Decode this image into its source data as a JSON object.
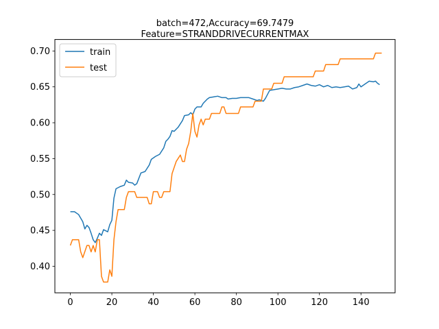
{
  "chart_data": {
    "type": "line",
    "title_line1": "batch=472,Accuracy=69.7479",
    "title_line2": "Feature=STRANDDRIVECURRENTMAX",
    "xlabel": "",
    "ylabel": "",
    "xlim": [
      -7.45,
      156.45
    ],
    "ylim": [
      0.363,
      0.716
    ],
    "xticks": [
      0,
      20,
      40,
      60,
      80,
      100,
      120,
      140
    ],
    "yticks": [
      0.4,
      0.45,
      0.5,
      0.55,
      0.6,
      0.65,
      0.7
    ],
    "ytick_labels": [
      "0.40",
      "0.45",
      "0.50",
      "0.55",
      "0.60",
      "0.65",
      "0.70"
    ],
    "grid": false,
    "legend": "upper-left",
    "series": [
      {
        "name": "train",
        "color": "#1f77b4",
        "points": [
          [
            0,
            0.476
          ],
          [
            2,
            0.476
          ],
          [
            4,
            0.472
          ],
          [
            6,
            0.462
          ],
          [
            7,
            0.452
          ],
          [
            8,
            0.457
          ],
          [
            9,
            0.454
          ],
          [
            10,
            0.446
          ],
          [
            11,
            0.437
          ],
          [
            12,
            0.433
          ],
          [
            13,
            0.439
          ],
          [
            14,
            0.446
          ],
          [
            15,
            0.443
          ],
          [
            16,
            0.451
          ],
          [
            18,
            0.448
          ],
          [
            19,
            0.458
          ],
          [
            20,
            0.464
          ],
          [
            21,
            0.495
          ],
          [
            22,
            0.508
          ],
          [
            24,
            0.511
          ],
          [
            26,
            0.513
          ],
          [
            27,
            0.52
          ],
          [
            28,
            0.517
          ],
          [
            30,
            0.516
          ],
          [
            31,
            0.513
          ],
          [
            32,
            0.515
          ],
          [
            34,
            0.53
          ],
          [
            36,
            0.532
          ],
          [
            38,
            0.541
          ],
          [
            39,
            0.549
          ],
          [
            41,
            0.553
          ],
          [
            43,
            0.556
          ],
          [
            45,
            0.565
          ],
          [
            46,
            0.574
          ],
          [
            47,
            0.577
          ],
          [
            48,
            0.581
          ],
          [
            49,
            0.589
          ],
          [
            50,
            0.588
          ],
          [
            52,
            0.594
          ],
          [
            54,
            0.603
          ],
          [
            55,
            0.61
          ],
          [
            57,
            0.611
          ],
          [
            58,
            0.614
          ],
          [
            59,
            0.611
          ],
          [
            60,
            0.619
          ],
          [
            61,
            0.622
          ],
          [
            63,
            0.622
          ],
          [
            64,
            0.627
          ],
          [
            66,
            0.633
          ],
          [
            67,
            0.635
          ],
          [
            69,
            0.636
          ],
          [
            71,
            0.637
          ],
          [
            73,
            0.635
          ],
          [
            75,
            0.635
          ],
          [
            76,
            0.633
          ],
          [
            78,
            0.634
          ],
          [
            80,
            0.634
          ],
          [
            82,
            0.635
          ],
          [
            84,
            0.635
          ],
          [
            86,
            0.635
          ],
          [
            88,
            0.633
          ],
          [
            90,
            0.631
          ],
          [
            91,
            0.632
          ],
          [
            93,
            0.63
          ],
          [
            94,
            0.634
          ],
          [
            96,
            0.645
          ],
          [
            98,
            0.646
          ],
          [
            100,
            0.647
          ],
          [
            102,
            0.648
          ],
          [
            104,
            0.647
          ],
          [
            106,
            0.647
          ],
          [
            108,
            0.649
          ],
          [
            110,
            0.65
          ],
          [
            112,
            0.652
          ],
          [
            114,
            0.654
          ],
          [
            116,
            0.652
          ],
          [
            118,
            0.651
          ],
          [
            120,
            0.653
          ],
          [
            122,
            0.65
          ],
          [
            124,
            0.652
          ],
          [
            126,
            0.649
          ],
          [
            128,
            0.65
          ],
          [
            130,
            0.649
          ],
          [
            132,
            0.65
          ],
          [
            134,
            0.651
          ],
          [
            136,
            0.647
          ],
          [
            138,
            0.649
          ],
          [
            139,
            0.654
          ],
          [
            140,
            0.65
          ],
          [
            142,
            0.654
          ],
          [
            144,
            0.658
          ],
          [
            146,
            0.657
          ],
          [
            147,
            0.658
          ],
          [
            148,
            0.655
          ],
          [
            149,
            0.653
          ]
        ]
      },
      {
        "name": "test",
        "color": "#ff7f0e",
        "points": [
          [
            0,
            0.429
          ],
          [
            1,
            0.437
          ],
          [
            4,
            0.437
          ],
          [
            5,
            0.42
          ],
          [
            6,
            0.412
          ],
          [
            8,
            0.429
          ],
          [
            9,
            0.429
          ],
          [
            10,
            0.42
          ],
          [
            11,
            0.429
          ],
          [
            12,
            0.42
          ],
          [
            13,
            0.437
          ],
          [
            14,
            0.437
          ],
          [
            15,
            0.386
          ],
          [
            16,
            0.378
          ],
          [
            18,
            0.378
          ],
          [
            19,
            0.395
          ],
          [
            20,
            0.386
          ],
          [
            21,
            0.437
          ],
          [
            22,
            0.462
          ],
          [
            23,
            0.479
          ],
          [
            26,
            0.479
          ],
          [
            27,
            0.496
          ],
          [
            28,
            0.504
          ],
          [
            31,
            0.504
          ],
          [
            32,
            0.496
          ],
          [
            37,
            0.496
          ],
          [
            38,
            0.487
          ],
          [
            39,
            0.487
          ],
          [
            40,
            0.504
          ],
          [
            42,
            0.504
          ],
          [
            43,
            0.496
          ],
          [
            44,
            0.496
          ],
          [
            45,
            0.504
          ],
          [
            48,
            0.504
          ],
          [
            49,
            0.529
          ],
          [
            51,
            0.546
          ],
          [
            53,
            0.555
          ],
          [
            54,
            0.546
          ],
          [
            55,
            0.546
          ],
          [
            56,
            0.563
          ],
          [
            57,
            0.571
          ],
          [
            58,
            0.588
          ],
          [
            59,
            0.613
          ],
          [
            60,
            0.588
          ],
          [
            61,
            0.58
          ],
          [
            62,
            0.597
          ],
          [
            63,
            0.605
          ],
          [
            64,
            0.597
          ],
          [
            65,
            0.605
          ],
          [
            67,
            0.605
          ],
          [
            68,
            0.613
          ],
          [
            72,
            0.613
          ],
          [
            73,
            0.622
          ],
          [
            74,
            0.622
          ],
          [
            75,
            0.613
          ],
          [
            81,
            0.613
          ],
          [
            82,
            0.622
          ],
          [
            88,
            0.622
          ],
          [
            89,
            0.63
          ],
          [
            92,
            0.63
          ],
          [
            93,
            0.647
          ],
          [
            97,
            0.647
          ],
          [
            98,
            0.655
          ],
          [
            102,
            0.655
          ],
          [
            103,
            0.664
          ],
          [
            117,
            0.664
          ],
          [
            118,
            0.672
          ],
          [
            122,
            0.672
          ],
          [
            123,
            0.681
          ],
          [
            129,
            0.681
          ],
          [
            130,
            0.689
          ],
          [
            146,
            0.689
          ],
          [
            147,
            0.697
          ],
          [
            150,
            0.697
          ]
        ]
      }
    ]
  }
}
